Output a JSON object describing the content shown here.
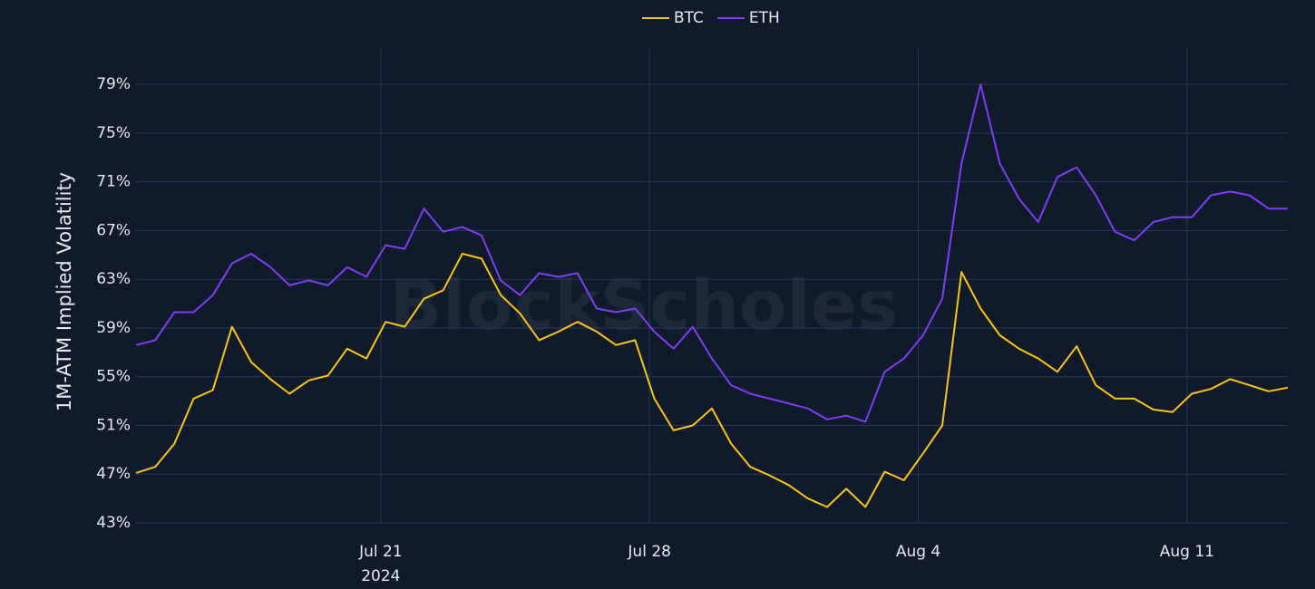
{
  "chart_data": {
    "type": "line",
    "y_axis_label": "1M-ATM Implied Volatility",
    "watermark": "BlockScholes",
    "year_label": "2024",
    "x": [
      "2024-07-14T15:00",
      "2024-07-15T03:00",
      "2024-07-15T15:00",
      "2024-07-16T03:00",
      "2024-07-16T15:00",
      "2024-07-17T03:00",
      "2024-07-17T15:00",
      "2024-07-18T03:00",
      "2024-07-18T15:00",
      "2024-07-19T03:00",
      "2024-07-19T15:00",
      "2024-07-20T03:00",
      "2024-07-20T15:00",
      "2024-07-21T03:00",
      "2024-07-21T15:00",
      "2024-07-22T03:00",
      "2024-07-22T15:00",
      "2024-07-23T03:00",
      "2024-07-23T15:00",
      "2024-07-24T03:00",
      "2024-07-24T15:00",
      "2024-07-25T03:00",
      "2024-07-25T15:00",
      "2024-07-26T03:00",
      "2024-07-26T15:00",
      "2024-07-27T03:00",
      "2024-07-27T15:00",
      "2024-07-28T03:00",
      "2024-07-28T15:00",
      "2024-07-29T03:00",
      "2024-07-29T15:00",
      "2024-07-30T03:00",
      "2024-07-30T15:00",
      "2024-07-31T03:00",
      "2024-07-31T15:00",
      "2024-08-01T03:00",
      "2024-08-01T15:00",
      "2024-08-02T03:00",
      "2024-08-02T15:00",
      "2024-08-03T03:00",
      "2024-08-03T15:00",
      "2024-08-04T03:00",
      "2024-08-04T15:00",
      "2024-08-05T03:00",
      "2024-08-05T15:00",
      "2024-08-06T03:00",
      "2024-08-06T15:00",
      "2024-08-07T03:00",
      "2024-08-07T15:00",
      "2024-08-08T03:00",
      "2024-08-08T15:00",
      "2024-08-09T03:00",
      "2024-08-09T15:00",
      "2024-08-10T03:00",
      "2024-08-10T15:00",
      "2024-08-11T03:00",
      "2024-08-11T15:00",
      "2024-08-12T03:00",
      "2024-08-12T15:00",
      "2024-08-13T03:00",
      "2024-08-13T15:00"
    ],
    "series": [
      {
        "name": "BTC",
        "color": "#f5c518",
        "values": [
          47.1,
          47.6,
          49.5,
          53.2,
          53.9,
          59.1,
          56.2,
          54.8,
          53.6,
          54.7,
          55.1,
          57.3,
          56.5,
          59.5,
          59.1,
          61.4,
          62.1,
          65.1,
          64.7,
          61.7,
          60.2,
          58.0,
          58.7,
          59.5,
          58.7,
          57.6,
          58.0,
          53.2,
          50.6,
          51.0,
          52.4,
          49.5,
          47.6,
          46.9,
          46.1,
          45.0,
          44.3,
          45.8,
          44.3,
          47.2,
          46.5,
          48.7,
          51.0,
          63.6,
          60.6,
          58.4,
          57.3,
          56.5,
          55.4,
          57.5,
          54.3,
          53.2,
          53.2,
          52.3,
          52.1,
          53.6,
          54.0,
          54.8,
          54.3,
          53.8,
          54.1
        ]
      },
      {
        "name": "ETH",
        "color": "#7b3ff2",
        "values": [
          57.6,
          58.0,
          60.3,
          60.3,
          61.7,
          64.3,
          65.1,
          64.0,
          62.5,
          62.9,
          62.5,
          64.0,
          63.2,
          65.8,
          65.5,
          68.8,
          66.9,
          67.3,
          66.6,
          62.9,
          61.7,
          63.5,
          63.2,
          63.5,
          60.6,
          60.3,
          60.6,
          58.7,
          57.3,
          59.1,
          56.5,
          54.3,
          53.6,
          53.2,
          52.8,
          52.4,
          51.5,
          51.8,
          51.3,
          55.4,
          56.5,
          58.4,
          61.4,
          72.5,
          79.0,
          72.5,
          69.6,
          67.7,
          71.4,
          72.2,
          69.9,
          66.9,
          66.2,
          67.7,
          68.1,
          68.1,
          69.9,
          70.2,
          69.9,
          68.8,
          68.8
        ]
      }
    ],
    "xlim": [
      "2024-07-14T15:00",
      "2024-08-13T15:00"
    ],
    "xticks": [
      {
        "value": "2024-07-21T00:00",
        "label": "Jul 21"
      },
      {
        "value": "2024-07-28T00:00",
        "label": "Jul 28"
      },
      {
        "value": "2024-08-04T00:00",
        "label": "Aug 4"
      },
      {
        "value": "2024-08-11T00:00",
        "label": "Aug 11"
      }
    ],
    "ylim": [
      43,
      82
    ],
    "yticks": [
      {
        "value": 43,
        "label": "43%"
      },
      {
        "value": 47,
        "label": "47%"
      },
      {
        "value": 51,
        "label": "51%"
      },
      {
        "value": 55,
        "label": "55%"
      },
      {
        "value": 59,
        "label": "59%"
      },
      {
        "value": 63,
        "label": "63%"
      },
      {
        "value": 67,
        "label": "67%"
      },
      {
        "value": 71,
        "label": "71%"
      },
      {
        "value": 75,
        "label": "75%"
      },
      {
        "value": 79,
        "label": "79%"
      }
    ],
    "grid": true,
    "legend": "top"
  }
}
